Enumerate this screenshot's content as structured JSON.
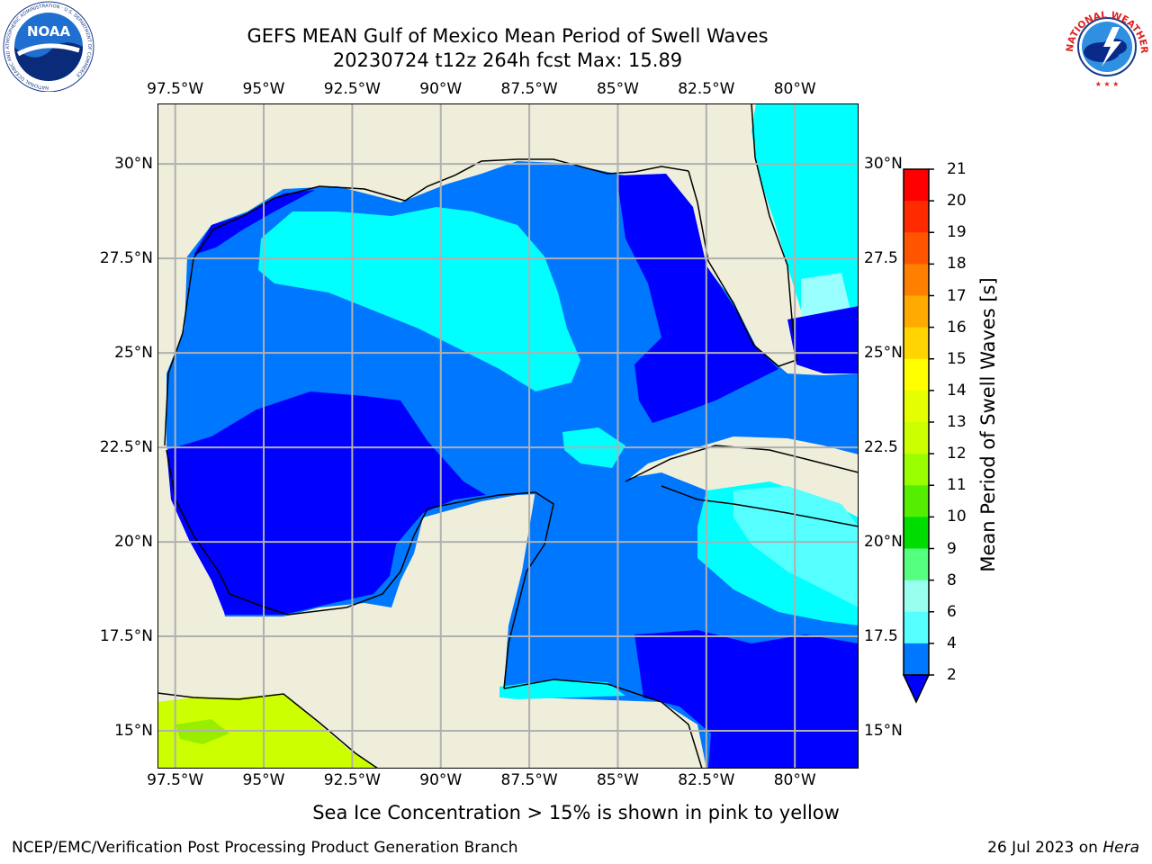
{
  "title": {
    "line1": "GEFS MEAN Gulf of Mexico Mean Period of Swell Waves",
    "line2": "20230724 t12z 264h fcst   Max: 15.89"
  },
  "logos": {
    "left": {
      "name": "noaa-logo",
      "text": "NOAA",
      "ring_text": "NATIONAL OCEANIC AND ATMOSPHERIC ADMINISTRATION · U.S. DEPARTMENT OF COMMERCE"
    },
    "right": {
      "name": "nws-logo",
      "ring_text": "NATIONAL WEATHER SERVICE"
    }
  },
  "map": {
    "lon_labels": [
      "97.5°W",
      "95°W",
      "92.5°W",
      "90°W",
      "87.5°W",
      "85°W",
      "82.5°W",
      "80°W"
    ],
    "lat_labels": [
      "30°N",
      "27.5°N",
      "25°N",
      "22.5°N",
      "20°N",
      "17.5°N",
      "15°N"
    ],
    "lat_labels_right": [
      "30°N",
      "27.5",
      "25°N",
      "22.5",
      "20°N",
      "17.5",
      "15°N"
    ],
    "lon_range": [
      -98,
      -78.2
    ],
    "lat_range": [
      14,
      31.6
    ],
    "land_color": "#efeedb",
    "grid": true
  },
  "colorbar": {
    "title": "Mean Period of Swell Waves [s]",
    "labels": [
      "21",
      "20",
      "19",
      "18",
      "17",
      "16",
      "15",
      "14",
      "13",
      "12",
      "11",
      "10",
      "9",
      "8",
      "6",
      "4",
      "2"
    ],
    "colors": [
      "#ff0000",
      "#ff2a00",
      "#ff5500",
      "#ff7f00",
      "#ffaa00",
      "#ffd400",
      "#ffff00",
      "#e6ff00",
      "#ccff00",
      "#99ff00",
      "#55ee00",
      "#00dd00",
      "#55ff7f",
      "#99ffee",
      "#55ffff",
      "#00ffff",
      "#0077ff"
    ],
    "extend_color": "#0000ff"
  },
  "subtitle": "Sea Ice Concentration > 15% is shown in pink to yellow",
  "footer": {
    "left": "NCEP/EMC/Verification Post Processing Product Generation Branch",
    "right_date": "26 Jul 2023 on ",
    "right_host": "Hera"
  }
}
